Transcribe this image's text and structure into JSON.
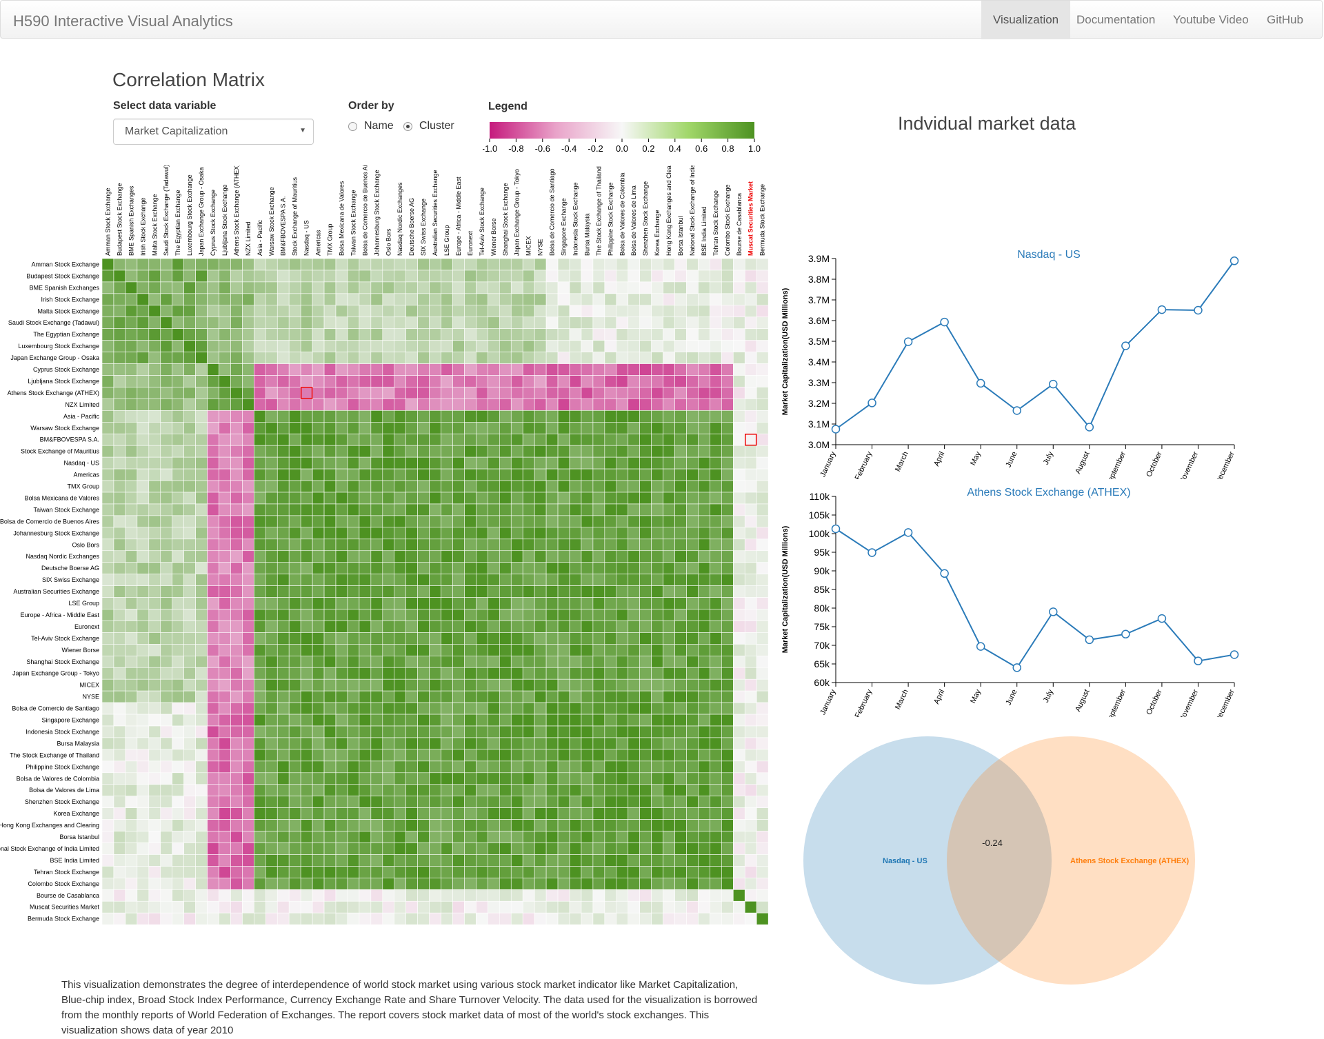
{
  "navbar": {
    "brand": "H590 Interactive Visual Analytics",
    "items": [
      {
        "label": "Visualization",
        "active": true
      },
      {
        "label": "Documentation",
        "active": false
      },
      {
        "label": "Youtube Video",
        "active": false
      },
      {
        "label": "GitHub",
        "active": false
      }
    ]
  },
  "matrix_panel": {
    "title": "Correlation Matrix",
    "select_label": "Select data variable",
    "select_value": "Market Capitalization",
    "order_label": "Order by",
    "order_options": [
      "Name",
      "Cluster"
    ],
    "order_selected": "Cluster",
    "legend_title": "Legend",
    "legend_ticks": [
      "-1.0",
      "-0.8",
      "-0.6",
      "-0.4",
      "-0.2",
      "0.0",
      "0.2",
      "0.4",
      "0.6",
      "0.8",
      "1.0"
    ],
    "highlighted_column": "Muscat Securities Market",
    "labels": [
      "Amman Stock Exchange",
      "Budapest Stock Exchange",
      "BME Spanish Exchanges",
      "Irish Stock Exchange",
      "Malta Stock Exchange",
      "Saudi Stock Exchange (Tadawul)",
      "The Egyptian Exchange",
      "Luxembourg Stock Exchange",
      "Japan Exchange Group - Osaka",
      "Cyprus Stock Exchange",
      "Ljubljana Stock Exchange",
      "Athens Stock Exchange (ATHEX)",
      "NZX Limited",
      "Asia - Pacific",
      "Warsaw Stock Exchange",
      "BM&FBOVESPA S.A.",
      "Stock Exchange of Mauritius",
      "Nasdaq - US",
      "Americas",
      "TMX Group",
      "Bolsa Mexicana de Valores",
      "Taiwan Stock Exchange",
      "Bolsa de Comercio de Buenos Aires",
      "Johannesburg Stock Exchange",
      "Oslo Bors",
      "Nasdaq Nordic Exchanges",
      "Deutsche Boerse AG",
      "SIX Swiss Exchange",
      "Australian Securities Exchange",
      "LSE Group",
      "Europe - Africa - Middle East",
      "Euronext",
      "Tel-Aviv Stock Exchange",
      "Wiener Borse",
      "Shanghai Stock Exchange",
      "Japan Exchange Group - Tokyo",
      "MICEX",
      "NYSE",
      "Bolsa de Comercio de Santiago",
      "Singapore Exchange",
      "Indonesia Stock Exchange",
      "Bursa Malaysia",
      "The Stock Exchange of Thailand",
      "Philippine Stock Exchange",
      "Bolsa de Valores de Colombia",
      "Bolsa de Valores de Lima",
      "Shenzhen Stock Exchange",
      "Korea Exchange",
      "Hong Kong Exchanges and Clearing",
      "Borsa Istanbul",
      "National Stock Exchange of India Limited",
      "BSE India Limited",
      "Tehran Stock Exchange",
      "Colombo Stock Exchange",
      "Bourse de Casablanca",
      "Muscat Securities Market",
      "Bermuda Stock Exchange"
    ],
    "description": "This visualization demonstrates the degree of interdependence of world stock market using various stock market indicator like Market Capitalization, Blue-chip index, Broad Stock Index Performance, Currency Exchange Rate and Share Turnover Velocity. The data used for the visualization is borrowed from the monthly reports of World Federation of Exchanges. The report covers stock market data of most of the world's stock exchanges. This visualization shows data of year 2010"
  },
  "market_panel": {
    "title": "Indvidual market data",
    "y_axis_label": "Market Capitalization(USD Millions)",
    "months": [
      "January",
      "February",
      "March",
      "April",
      "May",
      "June",
      "July",
      "August",
      "September",
      "October",
      "November",
      "December"
    ],
    "color": "#2b7bb9"
  },
  "chart_data": [
    {
      "type": "line",
      "title": "Nasdaq - US",
      "x": [
        "January",
        "February",
        "March",
        "April",
        "May",
        "June",
        "July",
        "August",
        "September",
        "October",
        "November",
        "December"
      ],
      "series": [
        {
          "name": "Nasdaq - US",
          "values": [
            3075000,
            3202000,
            3498000,
            3593000,
            3297000,
            3165000,
            3293000,
            3085000,
            3478000,
            3653000,
            3650000,
            3889000
          ]
        }
      ],
      "ylabel": "Market Capitalization(USD Millions)",
      "ylim": [
        3000000,
        3900000
      ],
      "yticks": [
        "3.0M",
        "3.1M",
        "3.2M",
        "3.3M",
        "3.4M",
        "3.5M",
        "3.6M",
        "3.7M",
        "3.8M",
        "3.9M"
      ]
    },
    {
      "type": "line",
      "title": "Athens Stock Exchange (ATHEX)",
      "x": [
        "January",
        "February",
        "March",
        "April",
        "May",
        "June",
        "July",
        "August",
        "September",
        "October",
        "November",
        "December"
      ],
      "series": [
        {
          "name": "Athens Stock Exchange (ATHEX)",
          "values": [
            101300,
            94900,
            100300,
            89300,
            69700,
            64000,
            79000,
            71500,
            73000,
            77200,
            65800,
            67500
          ]
        }
      ],
      "ylabel": "Market Capitalization(USD Millions)",
      "ylim": [
        60000,
        110000
      ],
      "yticks": [
        "60k",
        "65k",
        "70k",
        "75k",
        "80k",
        "85k",
        "90k",
        "95k",
        "100k",
        "105k",
        "110k"
      ]
    }
  ],
  "venn": {
    "left_label": "Nasdaq - US",
    "right_label": "Athens Stock Exchange (ATHEX)",
    "correlation": "-0.24",
    "left_color": "#1f77b4",
    "right_color": "#ff7f0e"
  }
}
